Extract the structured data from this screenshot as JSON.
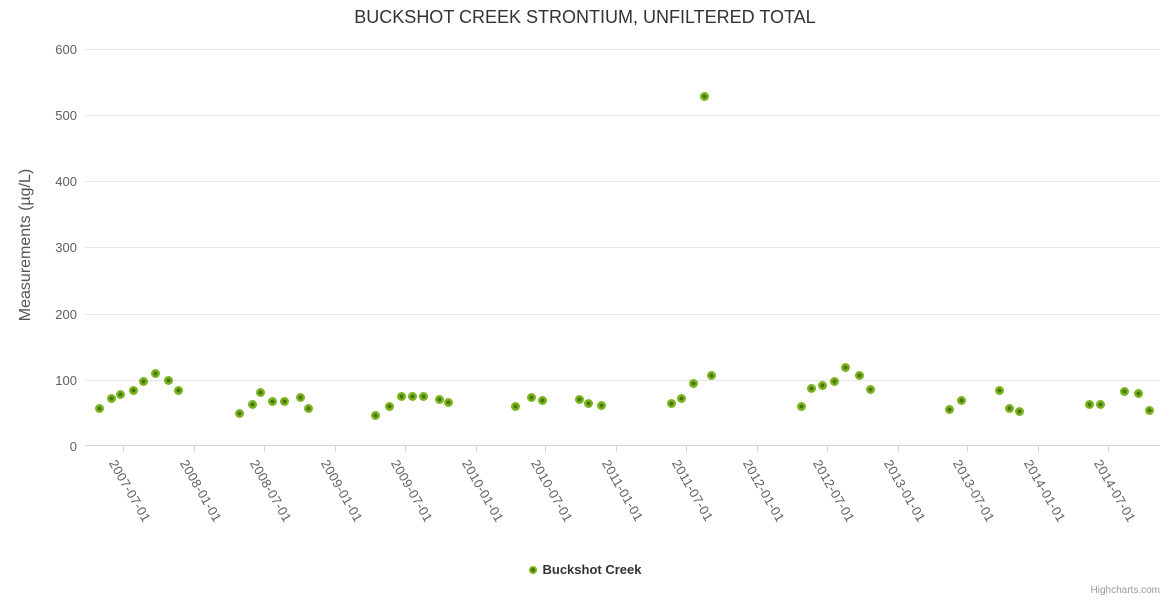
{
  "chart": {
    "credit": "Highcharts.com"
  },
  "colors": {
    "marker_outer": "#7ab41f",
    "marker_inner": "#46750c",
    "grid_line": "#e6e6e6",
    "axis_line": "#ccd6eb",
    "title_text": "#333333",
    "axis_label_text": "#606060",
    "axis_title_text": "#555555",
    "legend_text": "#333333",
    "credit_text": "#999999"
  },
  "chart_data": {
    "type": "scatter",
    "title": "BUCKSHOT CREEK STRONTIUM, UNFILTERED TOTAL",
    "xlabel": "",
    "ylabel": "Measurements (µg/L)",
    "grid": "horizontal-only",
    "legend_position": "bottom-center",
    "x_axis": {
      "type": "datetime",
      "min": "2007-03-24",
      "max": "2014-11-13",
      "tick_labels": [
        "2007-07-01",
        "2008-01-01",
        "2008-07-01",
        "2009-01-01",
        "2009-07-01",
        "2010-01-01",
        "2010-07-01",
        "2011-01-01",
        "2011-07-01",
        "2012-01-01",
        "2012-07-01",
        "2013-01-01",
        "2013-07-01",
        "2014-01-01",
        "2014-07-01"
      ]
    },
    "y_axis": {
      "min": 0,
      "max": 600,
      "tick_step": 100,
      "ticks": [
        0,
        100,
        200,
        300,
        400,
        500,
        600
      ]
    },
    "series": [
      {
        "name": "Buckshot Creek",
        "points": [
          {
            "date": "2007-05-01",
            "value": 56
          },
          {
            "date": "2007-06-01",
            "value": 72
          },
          {
            "date": "2007-06-24",
            "value": 78
          },
          {
            "date": "2007-07-27",
            "value": 84
          },
          {
            "date": "2007-08-24",
            "value": 97
          },
          {
            "date": "2007-09-24",
            "value": 110
          },
          {
            "date": "2007-10-28",
            "value": 99
          },
          {
            "date": "2007-11-23",
            "value": 84
          },
          {
            "date": "2008-04-29",
            "value": 49
          },
          {
            "date": "2008-06-01",
            "value": 62
          },
          {
            "date": "2008-06-22",
            "value": 81
          },
          {
            "date": "2008-07-24",
            "value": 67
          },
          {
            "date": "2008-08-22",
            "value": 67
          },
          {
            "date": "2008-10-03",
            "value": 73
          },
          {
            "date": "2008-10-25",
            "value": 57
          },
          {
            "date": "2009-04-16",
            "value": 46
          },
          {
            "date": "2009-05-22",
            "value": 59
          },
          {
            "date": "2009-06-23",
            "value": 74
          },
          {
            "date": "2009-07-21",
            "value": 74
          },
          {
            "date": "2009-08-19",
            "value": 74
          },
          {
            "date": "2009-09-29",
            "value": 70
          },
          {
            "date": "2009-10-23",
            "value": 65
          },
          {
            "date": "2010-04-15",
            "value": 59
          },
          {
            "date": "2010-05-26",
            "value": 73
          },
          {
            "date": "2010-06-24",
            "value": 69
          },
          {
            "date": "2010-09-29",
            "value": 70
          },
          {
            "date": "2010-10-21",
            "value": 64
          },
          {
            "date": "2010-11-23",
            "value": 61
          },
          {
            "date": "2011-05-25",
            "value": 64
          },
          {
            "date": "2011-06-20",
            "value": 71
          },
          {
            "date": "2011-07-20",
            "value": 95
          },
          {
            "date": "2011-08-19",
            "value": 527
          },
          {
            "date": "2011-09-05",
            "value": 107
          },
          {
            "date": "2012-04-25",
            "value": 60
          },
          {
            "date": "2012-05-21",
            "value": 87
          },
          {
            "date": "2012-06-20",
            "value": 91
          },
          {
            "date": "2012-07-22",
            "value": 98
          },
          {
            "date": "2012-08-18",
            "value": 118
          },
          {
            "date": "2012-09-23",
            "value": 106
          },
          {
            "date": "2012-10-22",
            "value": 85
          },
          {
            "date": "2013-05-16",
            "value": 55
          },
          {
            "date": "2013-06-15",
            "value": 69
          },
          {
            "date": "2013-09-22",
            "value": 84
          },
          {
            "date": "2013-10-18",
            "value": 56
          },
          {
            "date": "2013-11-14",
            "value": 52
          },
          {
            "date": "2014-05-14",
            "value": 62
          },
          {
            "date": "2014-06-12",
            "value": 63
          },
          {
            "date": "2014-08-13",
            "value": 83
          },
          {
            "date": "2014-09-17",
            "value": 80
          },
          {
            "date": "2014-10-18",
            "value": 53
          }
        ]
      }
    ]
  }
}
